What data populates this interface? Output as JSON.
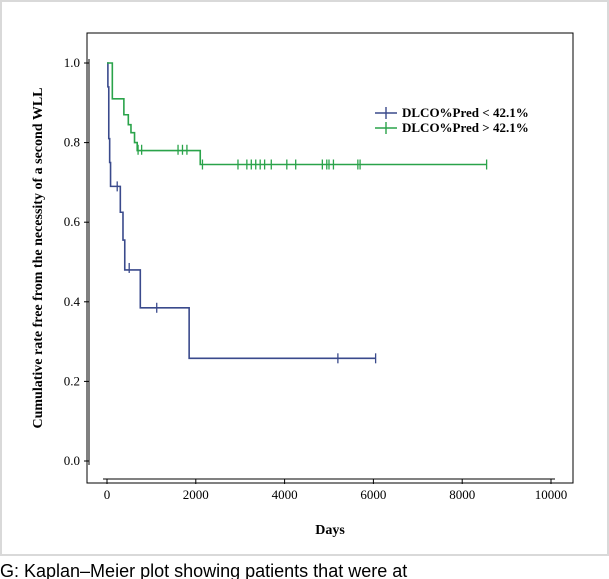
{
  "chart_data": {
    "type": "line",
    "subtype": "kaplan-meier",
    "xlabel": "Days",
    "ylabel": "Cumulative rate free from the necessity of a second WLL",
    "xlim": [
      0,
      10000
    ],
    "ylim": [
      0,
      1.0
    ],
    "xticks": [
      0,
      2000,
      4000,
      6000,
      8000,
      10000
    ],
    "yticks": [
      0.0,
      0.2,
      0.4,
      0.6,
      0.8,
      1.0
    ],
    "xtick_labels": [
      "0",
      "2000",
      "4000",
      "6000",
      "8000",
      "10000"
    ],
    "ytick_labels": [
      "0.0",
      "0.2",
      "0.4",
      "0.6",
      "0.8",
      "1.0"
    ],
    "grid": false,
    "legend_position": "top-right",
    "series": [
      {
        "name": "DLCO%Pred < 42.1%",
        "color": "#3a4a8c",
        "steps": [
          [
            0,
            1.0
          ],
          [
            20,
            0.94
          ],
          [
            40,
            0.81
          ],
          [
            60,
            0.75
          ],
          [
            80,
            0.69
          ],
          [
            300,
            0.625
          ],
          [
            360,
            0.555
          ],
          [
            400,
            0.48
          ],
          [
            750,
            0.385
          ],
          [
            1850,
            0.258
          ],
          [
            6050,
            0.258
          ]
        ],
        "censored": [
          [
            230,
            0.69
          ],
          [
            500,
            0.485
          ],
          [
            1120,
            0.385
          ],
          [
            5200,
            0.258
          ],
          [
            6050,
            0.258
          ]
        ]
      },
      {
        "name": "DLCO%Pred > 42.1%",
        "color": "#2aa34a",
        "steps": [
          [
            0,
            1.0
          ],
          [
            120,
            0.91
          ],
          [
            380,
            0.87
          ],
          [
            480,
            0.845
          ],
          [
            540,
            0.825
          ],
          [
            620,
            0.8
          ],
          [
            680,
            0.78
          ],
          [
            2100,
            0.745
          ],
          [
            8550,
            0.745
          ]
        ],
        "censored": [
          [
            700,
            0.782
          ],
          [
            780,
            0.782
          ],
          [
            1600,
            0.782
          ],
          [
            1700,
            0.782
          ],
          [
            1800,
            0.782
          ],
          [
            2150,
            0.745
          ],
          [
            2950,
            0.745
          ],
          [
            3150,
            0.745
          ],
          [
            3250,
            0.745
          ],
          [
            3350,
            0.745
          ],
          [
            3450,
            0.745
          ],
          [
            3550,
            0.745
          ],
          [
            3700,
            0.745
          ],
          [
            4050,
            0.745
          ],
          [
            4250,
            0.745
          ],
          [
            4850,
            0.745
          ],
          [
            4950,
            0.745
          ],
          [
            5000,
            0.745
          ],
          [
            5100,
            0.745
          ],
          [
            5650,
            0.745
          ],
          [
            5700,
            0.745
          ],
          [
            8550,
            0.745
          ]
        ]
      }
    ]
  },
  "caption": "G: Kaplan–Meier plot showing patients that were at"
}
